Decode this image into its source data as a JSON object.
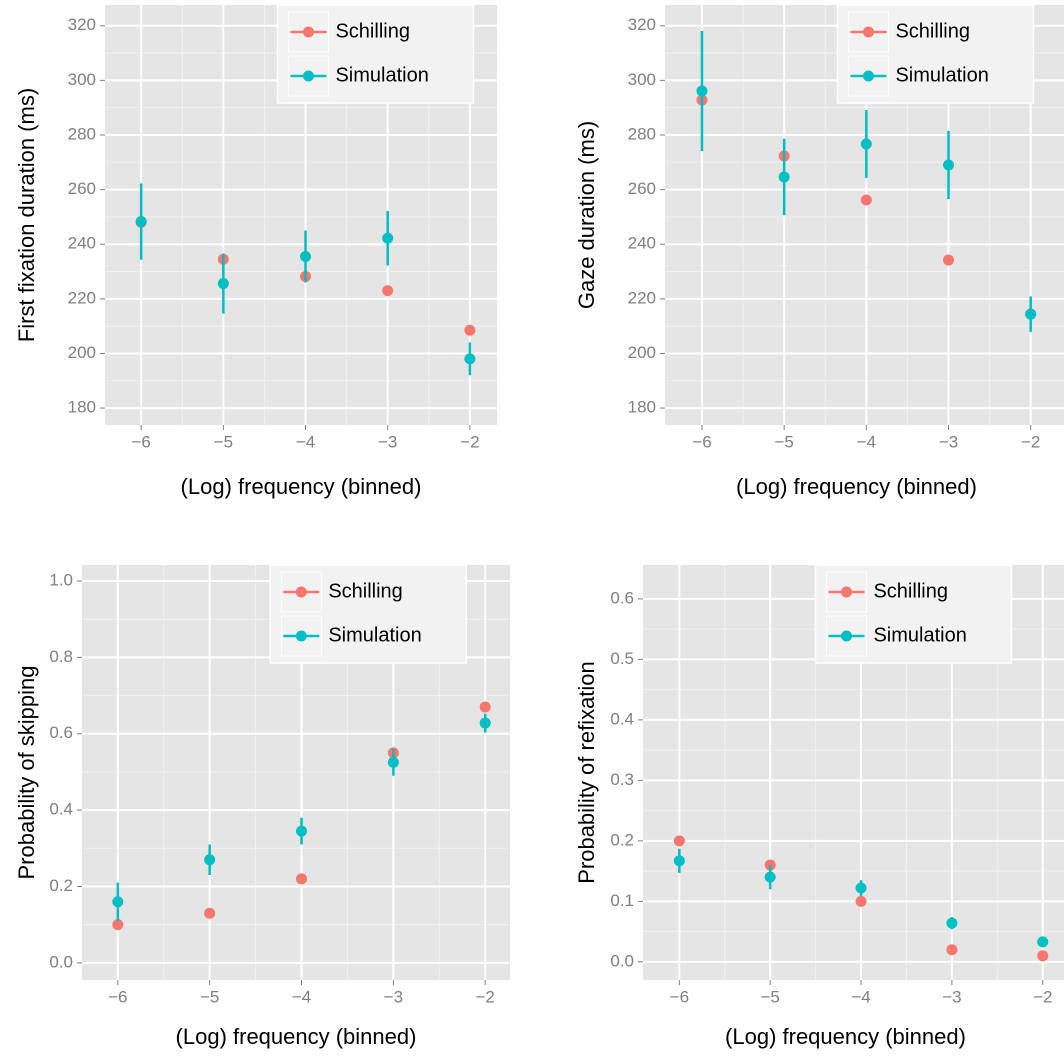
{
  "chart_data": [
    {
      "type": "scatter",
      "x_label": "(Log) frequency (binned)",
      "y_label": "First fixation duration (ms)",
      "x": [
        -6,
        -5,
        -4,
        -3,
        -2
      ],
      "series": [
        {
          "name": "Schilling",
          "color": "#F8766D",
          "values": [
            248,
            234.5,
            228.2,
            223,
            208.5
          ]
        },
        {
          "name": "Simulation",
          "color": "#00BFC4",
          "values": [
            248.3,
            225.6,
            235.5,
            242.2,
            198
          ],
          "errors": [
            14,
            11,
            9.5,
            10,
            6
          ]
        }
      ],
      "xlim": [
        -6.44,
        -1.67
      ],
      "ylim": [
        173.8,
        327.6
      ],
      "xticks": [
        {
          "value": -6,
          "label": "−6"
        },
        {
          "value": -5,
          "label": "−5"
        },
        {
          "value": -4,
          "label": "−4"
        },
        {
          "value": -3,
          "label": "−3"
        },
        {
          "value": -2,
          "label": "−2"
        }
      ],
      "yticks": [
        180,
        200,
        220,
        240,
        260,
        280,
        300,
        320
      ],
      "grid": true,
      "legend": "top"
    },
    {
      "type": "scatter",
      "x_label": "(Log) frequency (binned)",
      "y_label": "Gaze duration (ms)",
      "x": [
        -6,
        -5,
        -4,
        -3,
        -2
      ],
      "series": [
        {
          "name": "Schilling",
          "color": "#F8766D",
          "values": [
            292.8,
            272.3,
            256.2,
            234.2,
            214.4
          ]
        },
        {
          "name": "Simulation",
          "color": "#00BFC4",
          "values": [
            296.1,
            264.6,
            276.7,
            269,
            214.4
          ],
          "errors": [
            22,
            14,
            12.5,
            12.5,
            6.5
          ]
        }
      ],
      "xlim": [
        -6.45,
        -1.4
      ],
      "ylim": [
        173.8,
        327.6
      ],
      "xticks": [
        {
          "value": -6,
          "label": "−6"
        },
        {
          "value": -5,
          "label": "−5"
        },
        {
          "value": -4,
          "label": "−4"
        },
        {
          "value": -3,
          "label": "−3"
        },
        {
          "value": -2,
          "label": "−2"
        }
      ],
      "yticks": [
        180,
        200,
        220,
        240,
        260,
        280,
        300,
        320
      ],
      "grid": true,
      "legend": "top"
    },
    {
      "type": "scatter",
      "x_label": "(Log) frequency (binned)",
      "y_label": "Probability of skipping",
      "x": [
        -6,
        -5,
        -4,
        -3,
        -2
      ],
      "series": [
        {
          "name": "Schilling",
          "color": "#F8766D",
          "values": [
            0.1,
            0.13,
            0.22,
            0.55,
            0.67
          ]
        },
        {
          "name": "Simulation",
          "color": "#00BFC4",
          "values": [
            0.16,
            0.27,
            0.345,
            0.525,
            0.628
          ],
          "errors": [
            0.05,
            0.04,
            0.035,
            0.035,
            0.025
          ]
        }
      ],
      "xlim": [
        -6.39,
        -1.73
      ],
      "ylim": [
        -0.045,
        1.042
      ],
      "xticks": [
        {
          "value": -6,
          "label": "−6"
        },
        {
          "value": -5,
          "label": "−5"
        },
        {
          "value": -4,
          "label": "−4"
        },
        {
          "value": -3,
          "label": "−3"
        },
        {
          "value": -2,
          "label": "−2"
        }
      ],
      "yticks": [
        {
          "value": 0,
          "label": "0.0"
        },
        0.2,
        0.4,
        0.6,
        0.8,
        {
          "value": 1,
          "label": "1.0"
        }
      ],
      "grid": true,
      "legend": "top"
    },
    {
      "type": "scatter",
      "x_label": "(Log) frequency (binned)",
      "y_label": "Probability of refixation",
      "x": [
        -6,
        -5,
        -4,
        -3,
        -2
      ],
      "series": [
        {
          "name": "Schilling",
          "color": "#F8766D",
          "values": [
            0.2,
            0.16,
            0.1,
            0.02,
            0.01
          ]
        },
        {
          "name": "Simulation",
          "color": "#00BFC4",
          "values": [
            0.167,
            0.14,
            0.122,
            0.064,
            0.033
          ],
          "errors": [
            0.02,
            0.02,
            0.013,
            0.01,
            0.005
          ]
        }
      ],
      "xlim": [
        -6.4,
        -1.59
      ],
      "ylim": [
        -0.03,
        0.656
      ],
      "xticks": [
        {
          "value": -6,
          "label": "−6"
        },
        {
          "value": -5,
          "label": "−5"
        },
        {
          "value": -4,
          "label": "−4"
        },
        {
          "value": -3,
          "label": "−3"
        },
        {
          "value": -2,
          "label": "−2"
        }
      ],
      "yticks": [
        {
          "value": 0,
          "label": "0.0"
        },
        0.1,
        0.2,
        0.3,
        0.4,
        0.5,
        0.6
      ],
      "grid": true,
      "legend": "top"
    }
  ]
}
